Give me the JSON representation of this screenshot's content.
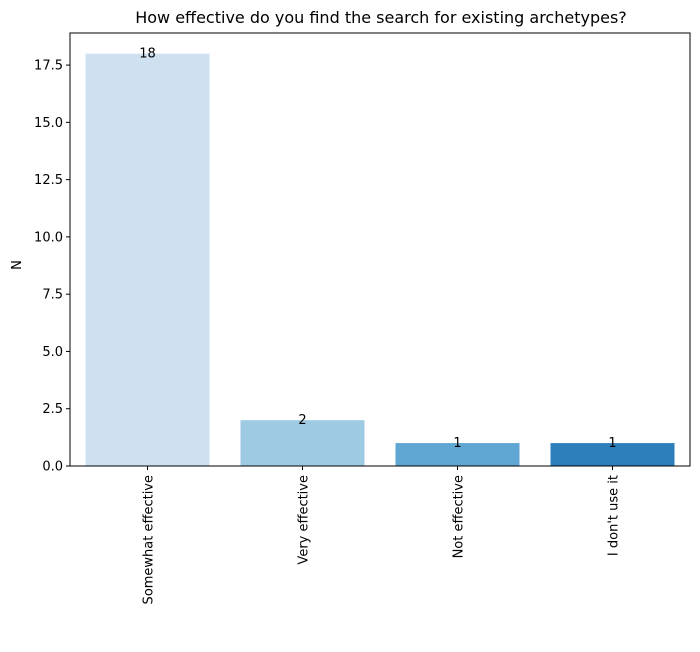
{
  "chart_data": {
    "type": "bar",
    "title": "How effective do you find the search for existing archetypes?",
    "xlabel": "",
    "ylabel": "N",
    "categories": [
      "Somewhat effective",
      "Very effective",
      "Not effective",
      "I don't use it"
    ],
    "values": [
      18,
      2,
      1,
      1
    ],
    "data_labels": [
      "18",
      "2",
      "1",
      "1"
    ],
    "colors": [
      "#cfe1f0",
      "#9fcae3",
      "#5fa6d3",
      "#2d7fbc"
    ],
    "ylim": [
      0,
      18.9
    ],
    "yticks": [
      0,
      2.5,
      5,
      7.5,
      10,
      12.5,
      15,
      17.5
    ],
    "ytick_labels": [
      "0.0",
      "2.5",
      "5.0",
      "7.5",
      "10.0",
      "12.5",
      "15.0",
      "17.5"
    ],
    "grid": false,
    "legend": "none"
  }
}
